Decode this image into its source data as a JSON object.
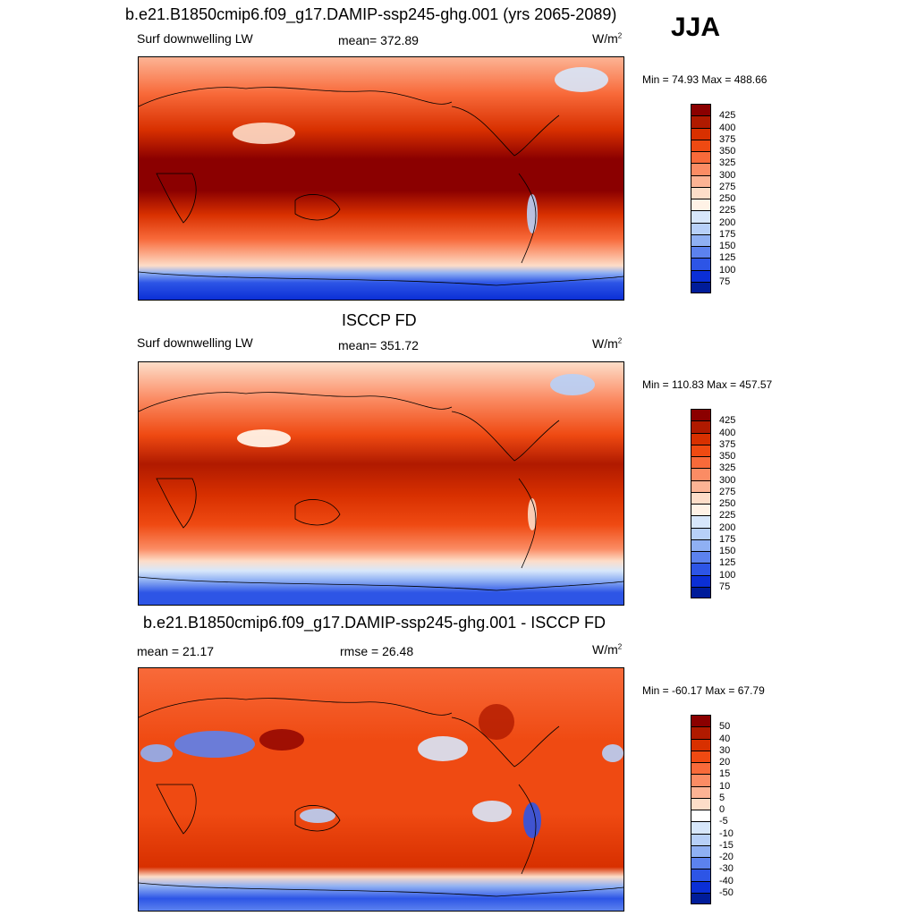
{
  "season": "JJA",
  "panels": [
    {
      "title": "b.e21.B1850cmip6.f09_g17.DAMIP-ssp245-ghg.001 (yrs 2065-2089)",
      "left_label": "Surf downwelling LW",
      "center_label": "mean= 372.89",
      "units_base": "W/m",
      "units_exp": "2",
      "minmax": "Min =  74.93 Max = 488.66",
      "colorbar_labels": [
        "425",
        "400",
        "375",
        "350",
        "325",
        "300",
        "275",
        "250",
        "225",
        "200",
        "175",
        "150",
        "125",
        "100",
        "75"
      ]
    },
    {
      "title": "ISCCP FD",
      "left_label": "Surf downwelling LW",
      "center_label": "mean= 351.72",
      "units_base": "W/m",
      "units_exp": "2",
      "minmax": "Min = 110.83 Max = 457.57",
      "colorbar_labels": [
        "425",
        "400",
        "375",
        "350",
        "325",
        "300",
        "275",
        "250",
        "225",
        "200",
        "175",
        "150",
        "125",
        "100",
        "75"
      ]
    },
    {
      "title": "b.e21.B1850cmip6.f09_g17.DAMIP-ssp245-ghg.001 - ISCCP FD",
      "left_label": "mean =  21.17",
      "center_label": "rmse =  26.48",
      "units_base": "W/m",
      "units_exp": "2",
      "minmax": "Min = -60.17 Max =  67.79",
      "colorbar_labels": [
        "50",
        "40",
        "30",
        "20",
        "15",
        "10",
        "5",
        "0",
        "-5",
        "-10",
        "-15",
        "-20",
        "-30",
        "-40",
        "-50"
      ]
    }
  ],
  "colors": {
    "abs_scale": [
      "#8b0000",
      "#b01a00",
      "#d83000",
      "#ef4a12",
      "#f86a3a",
      "#fb8c64",
      "#fcb394",
      "#fdddc8",
      "#fff2e6",
      "#d7e7fb",
      "#b7d0f8",
      "#8fb0f3",
      "#5c82ee",
      "#2d55e6",
      "#0b2fd6",
      "#001c9a"
    ],
    "diff_scale": [
      "#8b0000",
      "#b01a00",
      "#d83000",
      "#ef4a12",
      "#f86a3a",
      "#fb8c64",
      "#fcb394",
      "#fdddc8",
      "#ffffff",
      "#d7e7fb",
      "#b7d0f8",
      "#8fb0f3",
      "#5c82ee",
      "#2d55e6",
      "#0b2fd6",
      "#001c9a"
    ]
  }
}
